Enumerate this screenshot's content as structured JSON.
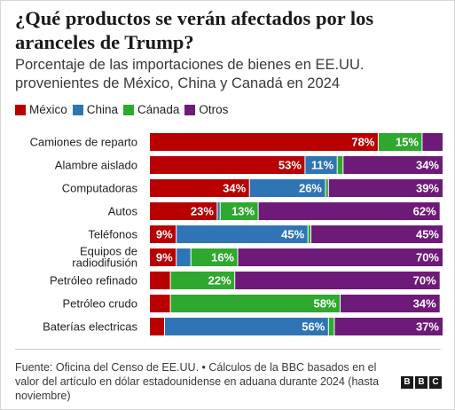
{
  "title": "¿Qué productos se verán afectados por los aranceles de Trump?",
  "subtitle": "Porcentaje de las importaciones de bienes en EE.UU. provenientes de México, China y Canadá en 2024",
  "source": "Fuente: Oficina del Censo de EE.UU. • Cálculos de la BBC basados en el valor del artículo en dólar estadounidense en aduana durante 2024 (hasta noviembre)",
  "logo": [
    "B",
    "B",
    "C"
  ],
  "colors": {
    "mexico": "#b80000",
    "china": "#2f75b5",
    "canada": "#2ea82e",
    "otros": "#6e1a78"
  },
  "chart_data": {
    "type": "bar",
    "orientation": "horizontal",
    "stacked": true,
    "title": "¿Qué productos se verán afectados por los aranceles de Trump?",
    "subtitle": "Porcentaje de las importaciones de bienes en EE.UU. provenientes de México, China y Canadá en 2024",
    "legend_position": "top-left",
    "xlim": [
      0,
      100
    ],
    "grid": false,
    "categories": [
      "Camiones de reparto",
      "Alambre aislado",
      "Computadoras",
      "Autos",
      "Teléfonos",
      "Equipos de radiodifusión",
      "Petróleo refinado",
      "Petróleo crudo",
      "Baterías electricas"
    ],
    "series": [
      {
        "name": "México",
        "key": "mexico",
        "values": [
          78,
          53,
          34,
          23,
          9,
          9,
          7,
          7,
          5
        ]
      },
      {
        "name": "China",
        "key": "china",
        "values": [
          0,
          11,
          26,
          1,
          45,
          5,
          0,
          0,
          56
        ]
      },
      {
        "name": "Cánada",
        "key": "canada",
        "values": [
          15,
          2,
          1,
          13,
          1,
          16,
          22,
          58,
          2
        ]
      },
      {
        "name": "Otros",
        "key": "otros",
        "values": [
          7,
          34,
          39,
          62,
          45,
          70,
          70,
          34,
          37
        ]
      }
    ],
    "data_labels": [
      [
        "78%",
        "",
        "15%",
        ""
      ],
      [
        "53%",
        "11%",
        "",
        "34%"
      ],
      [
        "34%",
        "26%",
        "",
        "39%"
      ],
      [
        "23%",
        "",
        "13%",
        "62%"
      ],
      [
        "9%",
        "45%",
        "",
        "45%"
      ],
      [
        "9%",
        "",
        "16%",
        "70%"
      ],
      [
        "",
        "",
        "22%",
        "70%"
      ],
      [
        "",
        "",
        "58%",
        "34%"
      ],
      [
        "",
        "56%",
        "",
        "37%"
      ]
    ]
  }
}
